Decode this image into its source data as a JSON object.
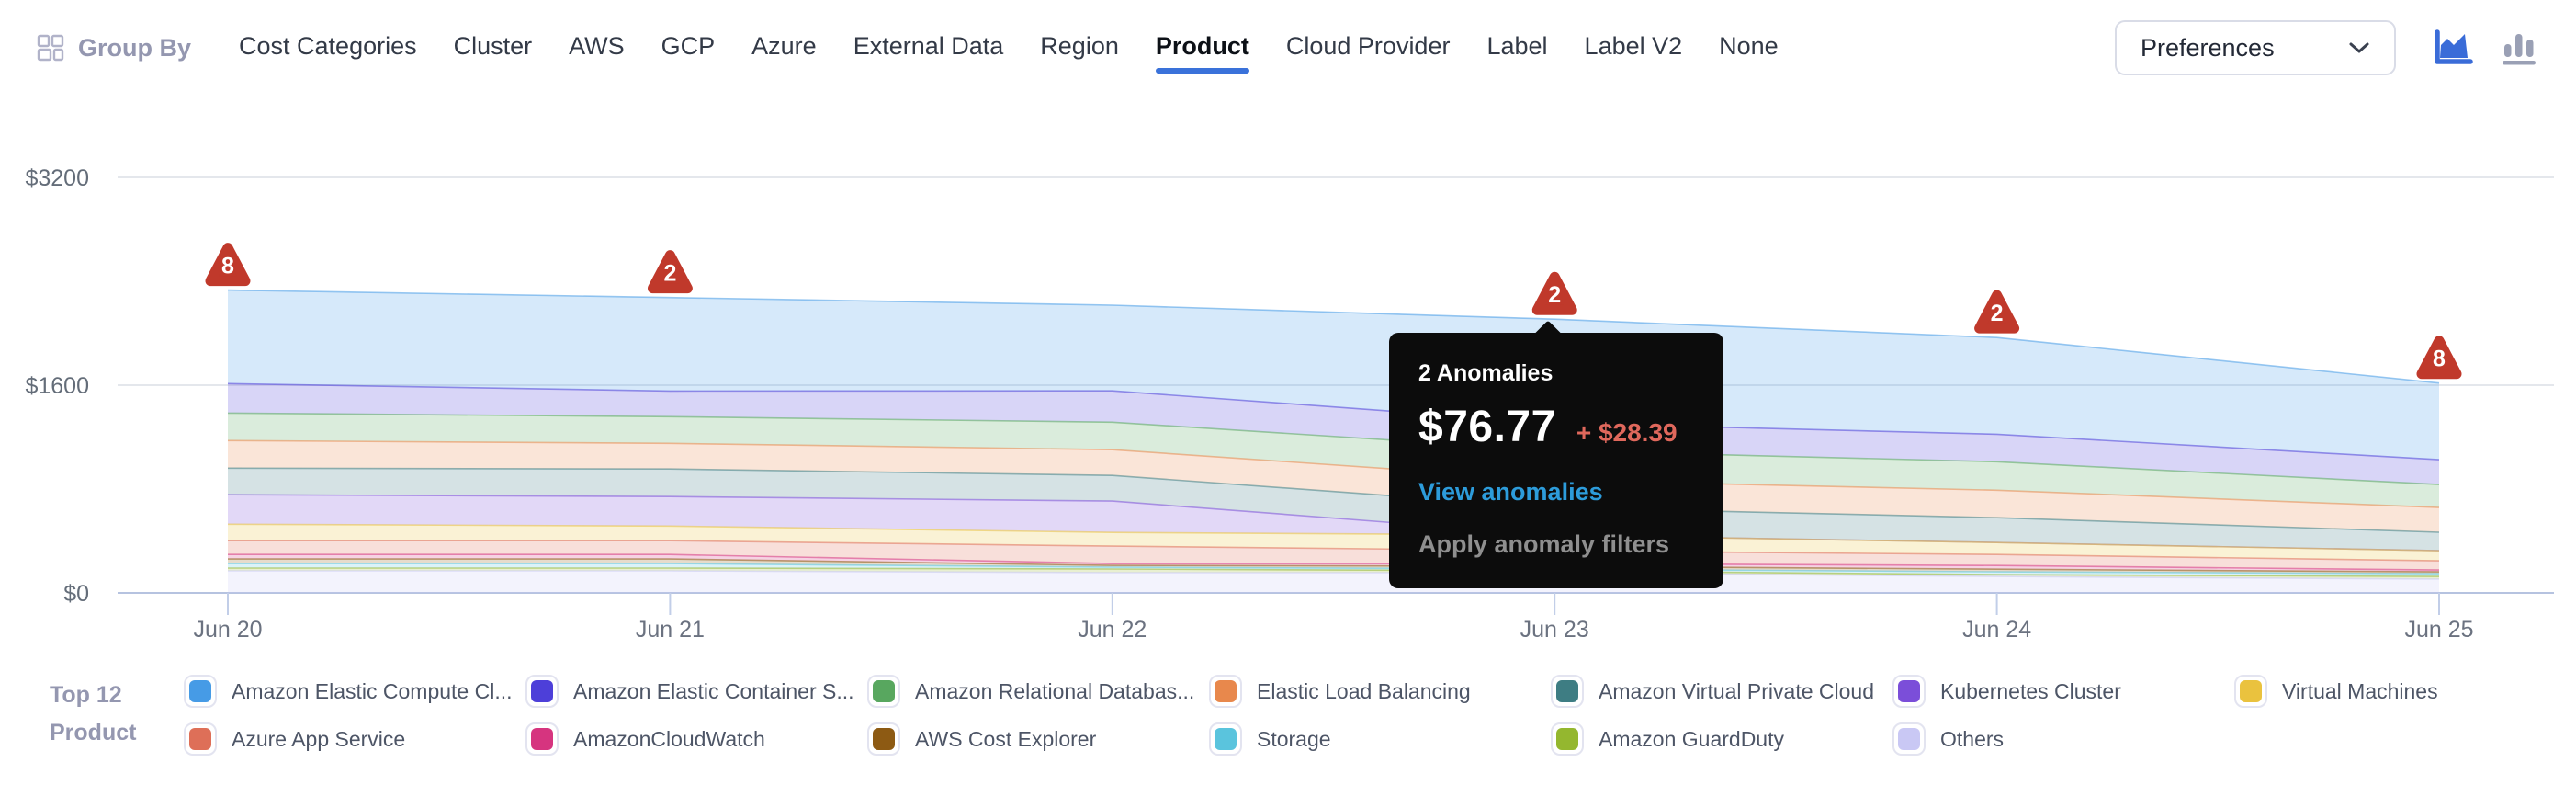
{
  "header": {
    "group_by_label": "Group By",
    "nav_items": [
      {
        "label": "Cost Categories",
        "active": false
      },
      {
        "label": "Cluster",
        "active": false
      },
      {
        "label": "AWS",
        "active": false
      },
      {
        "label": "GCP",
        "active": false
      },
      {
        "label": "Azure",
        "active": false
      },
      {
        "label": "External Data",
        "active": false
      },
      {
        "label": "Region",
        "active": false
      },
      {
        "label": "Product",
        "active": true
      },
      {
        "label": "Cloud Provider",
        "active": false
      },
      {
        "label": "Label",
        "active": false
      },
      {
        "label": "Label V2",
        "active": false
      },
      {
        "label": "None",
        "active": false
      }
    ],
    "preferences_label": "Preferences",
    "chart_view_selected": "area"
  },
  "chart_data": {
    "type": "area",
    "stacked": true,
    "x_labels": [
      "Jun 20",
      "Jun 21",
      "Jun 22",
      "Jun 23",
      "Jun 24",
      "Jun 25"
    ],
    "y_ticks": [
      {
        "label": "$0",
        "value": 0
      },
      {
        "label": "$1600",
        "value": 1600
      },
      {
        "label": "$3200",
        "value": 3200
      }
    ],
    "ylim": [
      0,
      3200
    ],
    "grid": "horizontal",
    "legend_position": "bottom",
    "series": [
      {
        "name": "Amazon Elastic Compute Cl...",
        "color": "#469be6",
        "values": [
          720,
          720,
          660,
          800,
          745,
          590
        ]
      },
      {
        "name": "Amazon Elastic Container S...",
        "color": "#4d3fd9",
        "values": [
          227,
          198,
          241,
          212,
          212,
          191
        ]
      },
      {
        "name": "Amazon Relational Databas...",
        "color": "#58a75f",
        "values": [
          212,
          205,
          212,
          227,
          219,
          177
        ]
      },
      {
        "name": "Elastic Load Balancing",
        "color": "#e8884c",
        "values": [
          212,
          198,
          198,
          212,
          212,
          191
        ]
      },
      {
        "name": "Amazon Virtual Private Cloud",
        "color": "#3e7d83",
        "values": [
          205,
          212,
          198,
          212,
          191,
          142
        ]
      },
      {
        "name": "Kubernetes Cluster",
        "color": "#7b4ed9",
        "values": [
          227,
          227,
          241,
          0,
          0,
          0
        ]
      },
      {
        "name": "Virtual Machines",
        "color": "#eac23e",
        "values": [
          127,
          113,
          106,
          120,
          92,
          78
        ]
      },
      {
        "name": "Azure App Service",
        "color": "#de6f58",
        "values": [
          106,
          106,
          134,
          99,
          85,
          71
        ]
      },
      {
        "name": "AmazonCloudWatch",
        "color": "#d6347f",
        "values": [
          35,
          35,
          14,
          21,
          28,
          14
        ]
      },
      {
        "name": "AWS Cost Explorer",
        "color": "#8d5a13",
        "values": [
          35,
          35,
          14,
          21,
          21,
          14
        ]
      },
      {
        "name": "Storage",
        "color": "#5ac4dd",
        "values": [
          35,
          35,
          14,
          14,
          21,
          21
        ]
      },
      {
        "name": "Amazon GuardDuty",
        "color": "#94b72f",
        "values": [
          21,
          21,
          28,
          14,
          14,
          21
        ]
      },
      {
        "name": "Others",
        "color": "#c9c8f4",
        "values": [
          170,
          170,
          156,
          156,
          127,
          106
        ]
      }
    ],
    "anomalies": [
      {
        "x_label": "Jun 20",
        "count": 8
      },
      {
        "x_label": "Jun 21",
        "count": 2
      },
      {
        "x_label": "Jun 23",
        "count": 2
      },
      {
        "x_label": "Jun 24",
        "count": 2
      },
      {
        "x_label": "Jun 25",
        "count": 8
      }
    ],
    "anomaly_color": "#c0392b"
  },
  "tooltip": {
    "anchor_x_label": "Jun 23",
    "title": "2 Anomalies",
    "value": "$76.77",
    "delta": "+ $28.39",
    "action_primary": "View anomalies",
    "action_secondary": "Apply anomaly filters"
  },
  "legend": {
    "title_line1": "Top 12",
    "title_line2": "Product",
    "items": [
      {
        "label": "Amazon Elastic Compute Cl...",
        "color": "#469be6"
      },
      {
        "label": "Amazon Elastic Container S...",
        "color": "#4d3fd9"
      },
      {
        "label": "Amazon Relational Databas...",
        "color": "#58a75f"
      },
      {
        "label": "Elastic Load Balancing",
        "color": "#e8884c"
      },
      {
        "label": "Amazon Virtual Private Cloud",
        "color": "#3e7d83"
      },
      {
        "label": "Kubernetes Cluster",
        "color": "#7b4ed9"
      },
      {
        "label": "Virtual Machines",
        "color": "#eac23e"
      },
      {
        "label": "Azure App Service",
        "color": "#de6f58"
      },
      {
        "label": "AmazonCloudWatch",
        "color": "#d6347f"
      },
      {
        "label": "AWS Cost Explorer",
        "color": "#8d5a13"
      },
      {
        "label": "Storage",
        "color": "#5ac4dd"
      },
      {
        "label": "Amazon GuardDuty",
        "color": "#94b72f"
      },
      {
        "label": "Others",
        "color": "#c9c8f4"
      }
    ]
  },
  "colors": {
    "accent_blue": "#3a72da",
    "anomaly_red": "#c0392b",
    "tooltip_bg": "#0c0c0c",
    "tooltip_link_blue": "#2d9cdb",
    "tooltip_delta_red": "#e0685c",
    "axis_text": "#646d79",
    "axis_line": "#b6c3e0",
    "gridline": "#e4e7ec",
    "nav_text": "#333a47",
    "muted_label": "#9497b0",
    "area_icon_selected": "#3a6cd8",
    "bar_icon_unselected": "#9aa0b5"
  }
}
